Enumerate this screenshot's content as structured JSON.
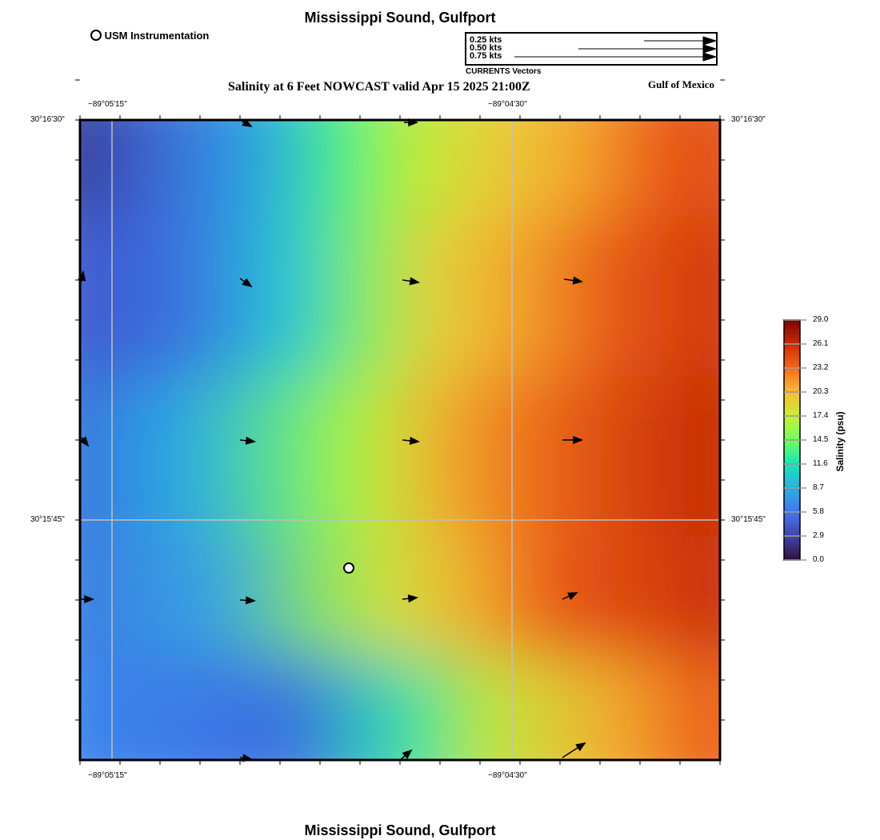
{
  "header": {
    "title": "Mississippi Sound, Gulfport",
    "station_legend": "USM Instrumentation",
    "vector_legend": {
      "speeds": [
        "0.25 kts",
        "0.50 kts",
        "0.75 kts"
      ],
      "caption": "CURRENTS Vectors"
    },
    "subtitle": "Salinity at 6 Feet NOWCAST valid Apr 15 2025 21:00Z",
    "region": "Gulf of Mexico"
  },
  "map": {
    "lon_labels": [
      "−89°05'15\"",
      "−89°04'30\""
    ],
    "lat_labels": [
      "30°16'30\"",
      "30°15'45\""
    ]
  },
  "colorbar": {
    "label": "Salinity (psu)",
    "ticks": [
      "29.0",
      "26.1",
      "23.2",
      "20.3",
      "17.4",
      "14.5",
      "11.6",
      "8.7",
      "5.8",
      "2.9",
      "0.0"
    ],
    "range": [
      0,
      29
    ]
  },
  "footer": {
    "title": "Mississippi Sound, Gulfport"
  }
}
